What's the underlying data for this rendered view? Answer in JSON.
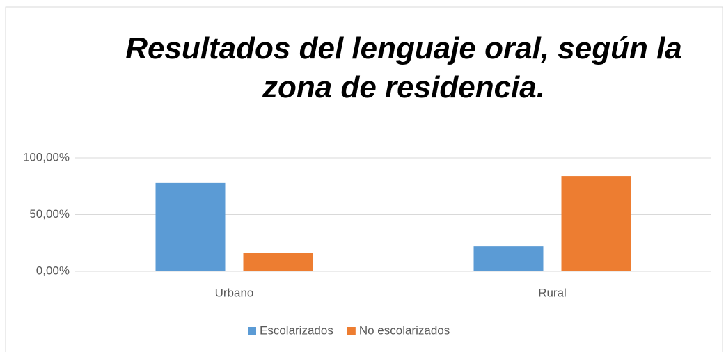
{
  "chart_data": {
    "type": "bar",
    "title": "Resultados del lenguaje oral, según la zona de residencia.",
    "categories": [
      "Urbano",
      "Rural"
    ],
    "series": [
      {
        "name": "Escolarizados",
        "color": "#5b9bd5",
        "values": [
          78,
          22
        ]
      },
      {
        "name": "No escolarizados",
        "color": "#ed7d31",
        "values": [
          16,
          84
        ]
      }
    ],
    "ylim": [
      0,
      100
    ],
    "yticks": [
      {
        "value": 0,
        "label": "0,00%"
      },
      {
        "value": 50,
        "label": "50,00%"
      },
      {
        "value": 100,
        "label": "100,00%"
      }
    ],
    "grid": true,
    "legend": "bottom"
  }
}
